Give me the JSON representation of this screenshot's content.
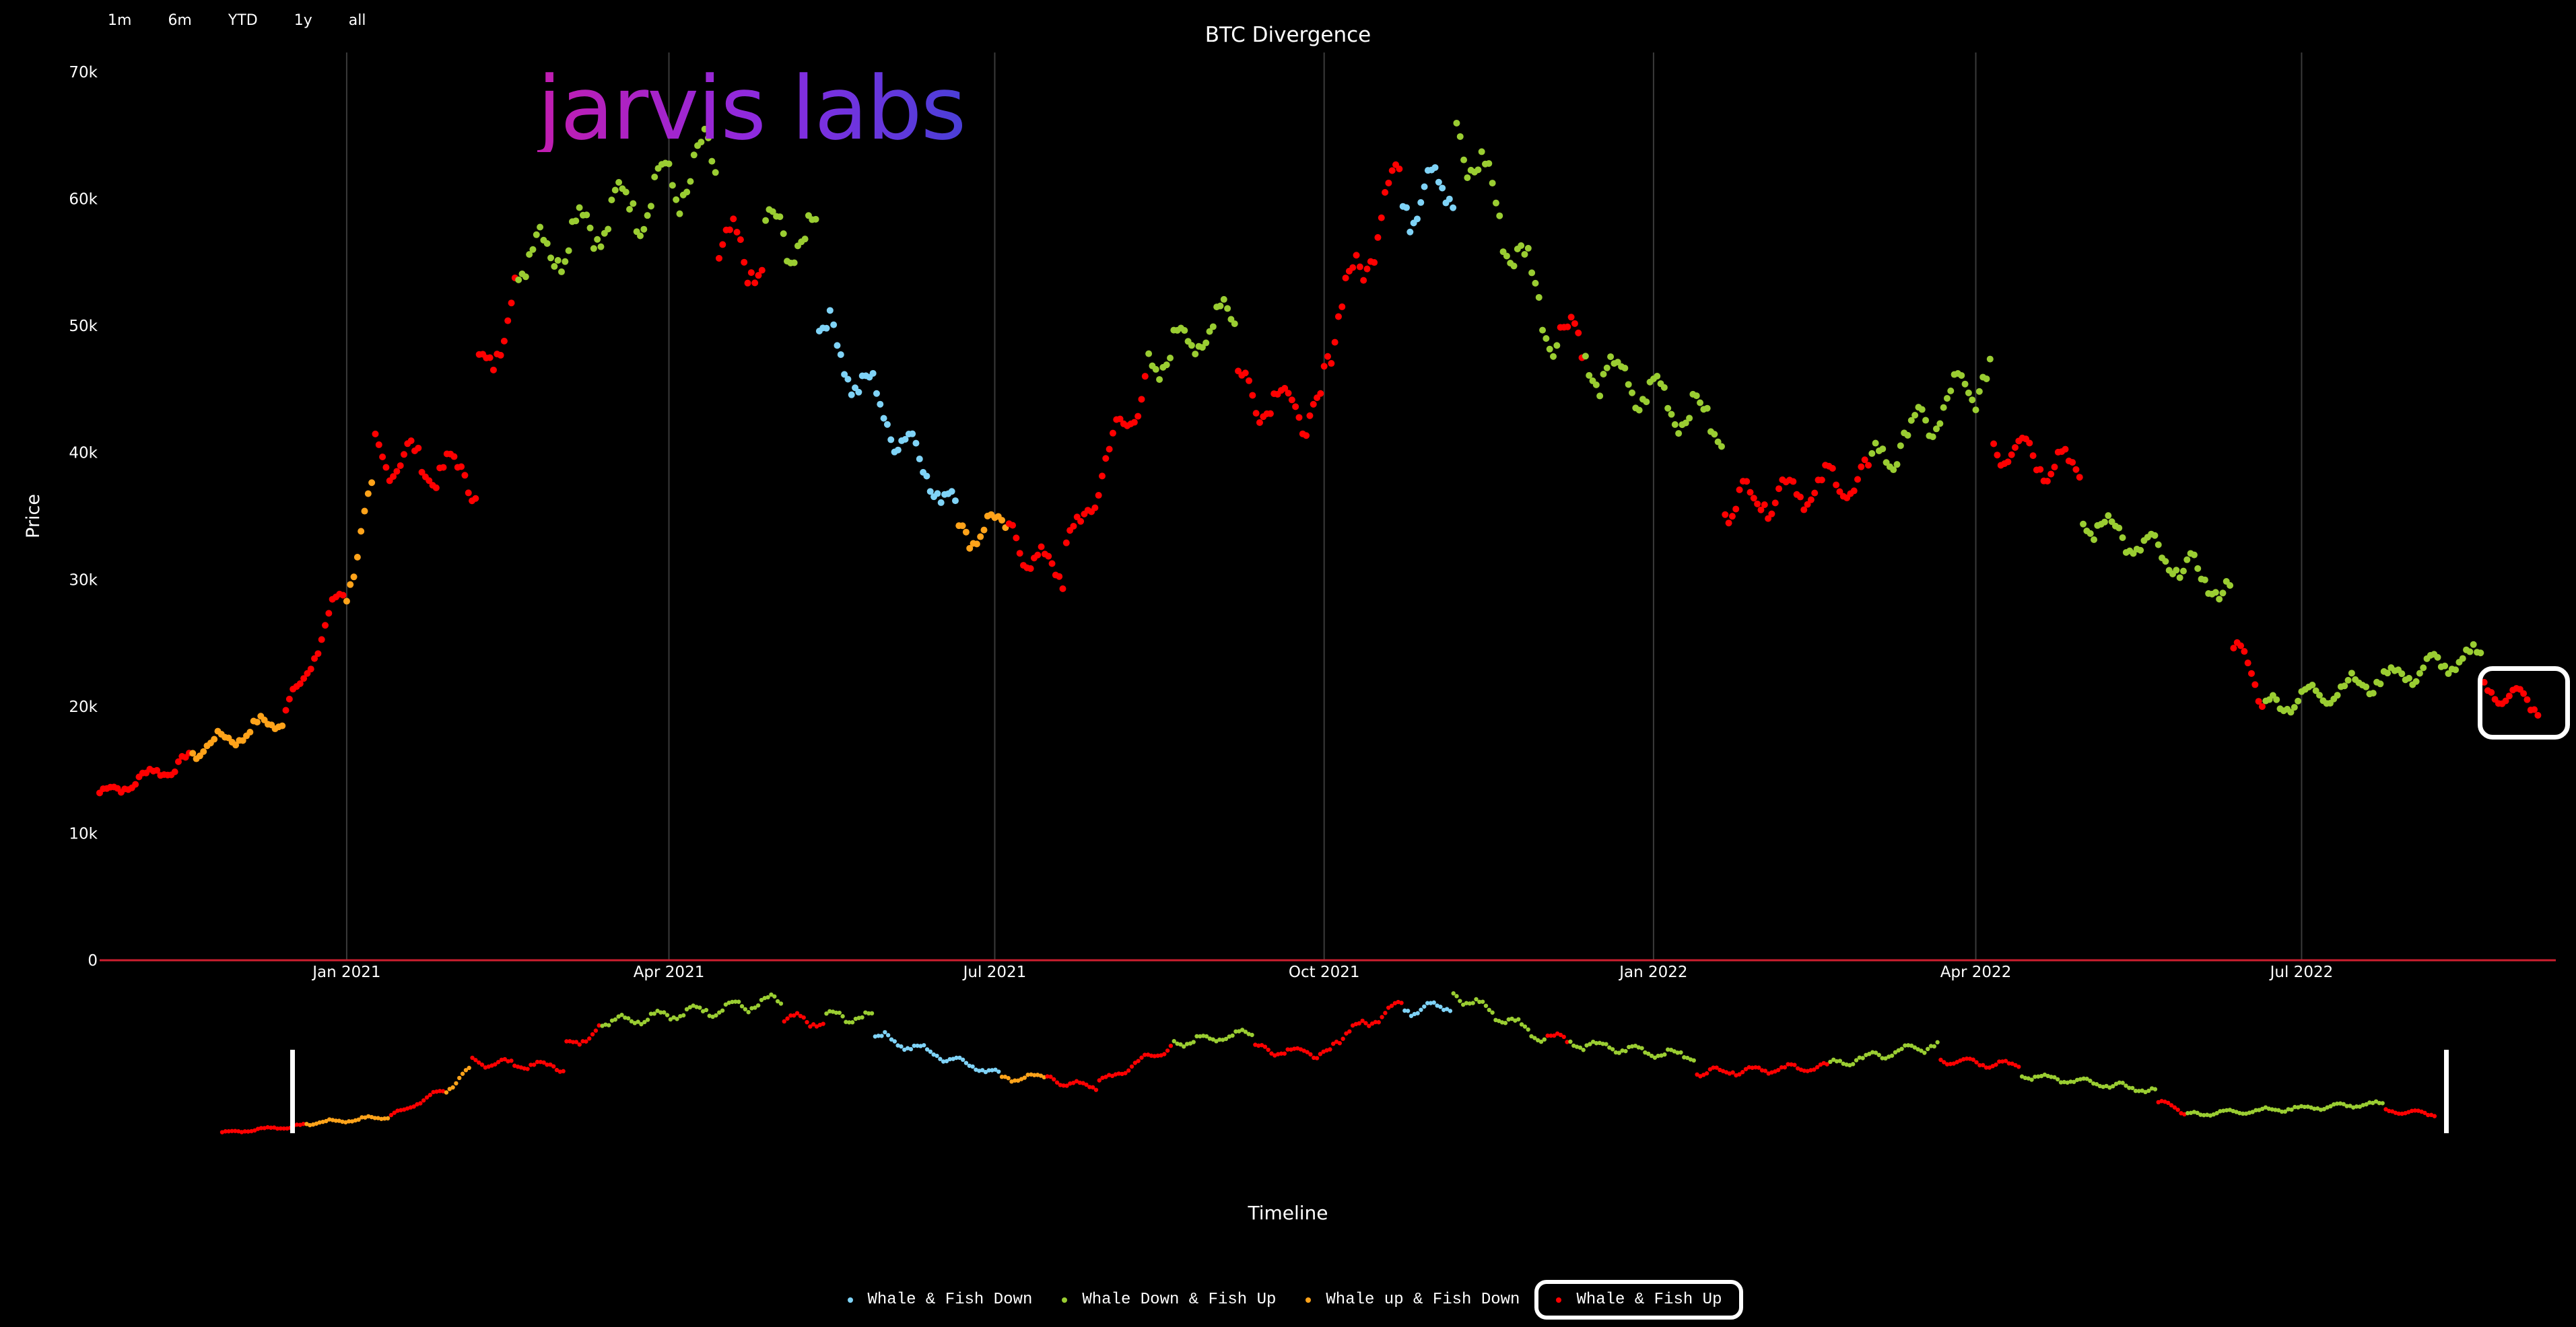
{
  "range_buttons": [
    "1m",
    "6m",
    "YTD",
    "1y",
    "all"
  ],
  "logo_text": "jarvis labs",
  "timeline_label": "Timeline",
  "legend_items": [
    {
      "label": "Whale & Fish Down",
      "color": "#7fd3f7"
    },
    {
      "label": "Whale Down & Fish Up",
      "color": "#9acd32"
    },
    {
      "label": "Whale up & Fish Down",
      "color": "#ffa31a"
    },
    {
      "label": "Whale & Fish Up",
      "color": "#ff0000"
    }
  ],
  "colors": {
    "background": "#000000",
    "zero_line": "#cc1f2f",
    "grid": "#3a3a3a"
  },
  "chart_data": {
    "type": "scatter",
    "title": "BTC Divergence",
    "xlabel": "",
    "ylabel": "Price",
    "y_ticks": [
      "0",
      "10k",
      "20k",
      "30k",
      "40k",
      "50k",
      "60k",
      "70k"
    ],
    "ylim": [
      0,
      70000
    ],
    "x_start": "2020-10-24",
    "x_end": "2022-09-10",
    "x_ticks": [
      {
        "date": "2021-01-01",
        "label": "Jan 2021"
      },
      {
        "date": "2021-04-01",
        "label": "Apr 2021"
      },
      {
        "date": "2021-07-01",
        "label": "Jul 2021"
      },
      {
        "date": "2021-10-01",
        "label": "Oct 2021"
      },
      {
        "date": "2022-01-01",
        "label": "Jan 2022"
      },
      {
        "date": "2022-04-01",
        "label": "Apr 2022"
      },
      {
        "date": "2022-07-01",
        "label": "Jul 2022"
      }
    ],
    "grid": "vertical",
    "legend_position": "bottom",
    "series_names": [
      "Whale & Fish Down",
      "Whale Down & Fish Up",
      "Whale up & Fish Down",
      "Whale & Fish Up"
    ],
    "series_colors": [
      "#7fd3f7",
      "#9acd32",
      "#ffa31a",
      "#ff0000"
    ],
    "segments": [
      {
        "from": "2020-10-24",
        "to": "2020-11-18",
        "series": 3,
        "y0": 13000,
        "y1": 15800
      },
      {
        "from": "2020-11-19",
        "to": "2020-12-14",
        "series": 2,
        "y0": 16500,
        "y1": 19000
      },
      {
        "from": "2020-12-15",
        "to": "2020-12-31",
        "series": 3,
        "y0": 19500,
        "y1": 29000
      },
      {
        "from": "2021-01-01",
        "to": "2021-01-08",
        "series": 2,
        "y0": 29500,
        "y1": 36000
      },
      {
        "from": "2021-01-09",
        "to": "2021-02-06",
        "series": 3,
        "y0": 40000,
        "y1": 38000
      },
      {
        "from": "2021-02-07",
        "to": "2021-02-17",
        "series": 3,
        "y0": 46000,
        "y1": 52000
      },
      {
        "from": "2021-02-18",
        "to": "2021-04-14",
        "series": 1,
        "y0": 55000,
        "y1": 63000
      },
      {
        "from": "2021-04-15",
        "to": "2021-04-27",
        "series": 3,
        "y0": 56000,
        "y1": 55000
      },
      {
        "from": "2021-04-28",
        "to": "2021-05-12",
        "series": 1,
        "y0": 57000,
        "y1": 57000
      },
      {
        "from": "2021-05-13",
        "to": "2021-06-20",
        "series": 0,
        "y0": 50000,
        "y1": 35500
      },
      {
        "from": "2021-06-21",
        "to": "2021-07-04",
        "series": 2,
        "y0": 34000,
        "y1": 34000
      },
      {
        "from": "2021-07-05",
        "to": "2021-07-20",
        "series": 3,
        "y0": 33500,
        "y1": 30000
      },
      {
        "from": "2021-07-21",
        "to": "2021-08-12",
        "series": 3,
        "y0": 32000,
        "y1": 46000
      },
      {
        "from": "2021-08-13",
        "to": "2021-09-06",
        "series": 1,
        "y0": 47000,
        "y1": 51000
      },
      {
        "from": "2021-09-07",
        "to": "2021-09-30",
        "series": 3,
        "y0": 45000,
        "y1": 43000
      },
      {
        "from": "2021-10-01",
        "to": "2021-10-22",
        "series": 3,
        "y0": 48000,
        "y1": 62000
      },
      {
        "from": "2021-10-23",
        "to": "2021-11-06",
        "series": 0,
        "y0": 60000,
        "y1": 61500
      },
      {
        "from": "2021-11-07",
        "to": "2021-12-05",
        "series": 1,
        "y0": 66000,
        "y1": 49000
      },
      {
        "from": "2021-12-06",
        "to": "2021-12-12",
        "series": 3,
        "y0": 50000,
        "y1": 48000
      },
      {
        "from": "2021-12-13",
        "to": "2022-01-20",
        "series": 1,
        "y0": 47000,
        "y1": 42000
      },
      {
        "from": "2022-01-21",
        "to": "2022-03-02",
        "series": 3,
        "y0": 36000,
        "y1": 38000
      },
      {
        "from": "2022-03-03",
        "to": "2022-04-05",
        "series": 1,
        "y0": 39000,
        "y1": 46500
      },
      {
        "from": "2022-04-06",
        "to": "2022-04-30",
        "series": 3,
        "y0": 41000,
        "y1": 38500
      },
      {
        "from": "2022-05-01",
        "to": "2022-06-11",
        "series": 1,
        "y0": 35000,
        "y1": 29000
      },
      {
        "from": "2022-06-12",
        "to": "2022-06-20",
        "series": 3,
        "y0": 25000,
        "y1": 20500
      },
      {
        "from": "2022-06-21",
        "to": "2022-08-20",
        "series": 1,
        "y0": 20000,
        "y1": 24000
      },
      {
        "from": "2022-08-21",
        "to": "2022-09-05",
        "series": 3,
        "y0": 21500,
        "y1": 20000
      }
    ]
  }
}
